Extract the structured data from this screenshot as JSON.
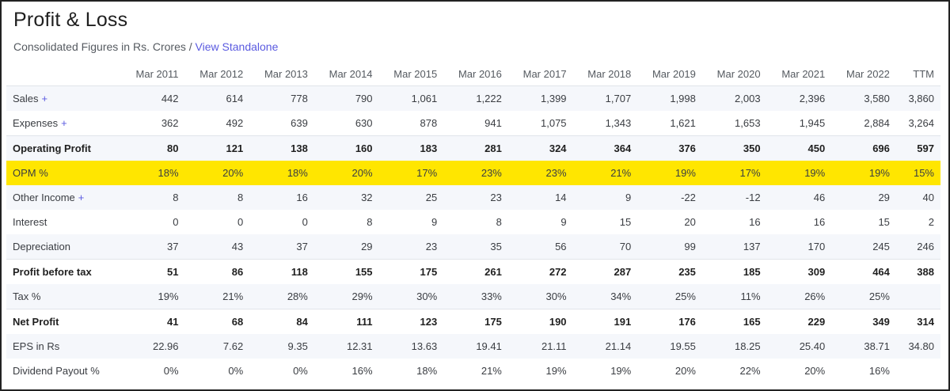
{
  "header": {
    "title": "Profit & Loss",
    "subtitle": "Consolidated Figures in Rs. Crores",
    "separator": " / ",
    "link": "View Standalone"
  },
  "table": {
    "columns": [
      "Mar 2011",
      "Mar 2012",
      "Mar 2013",
      "Mar 2014",
      "Mar 2015",
      "Mar 2016",
      "Mar 2017",
      "Mar 2018",
      "Mar 2019",
      "Mar 2020",
      "Mar 2021",
      "Mar 2022",
      "TTM"
    ],
    "rows": [
      {
        "label": "Sales",
        "expandable": true,
        "style": "stripe",
        "values": [
          "442",
          "614",
          "778",
          "790",
          "1,061",
          "1,222",
          "1,399",
          "1,707",
          "1,998",
          "2,003",
          "2,396",
          "3,580",
          "3,860"
        ]
      },
      {
        "label": "Expenses",
        "expandable": true,
        "style": "",
        "values": [
          "362",
          "492",
          "639",
          "630",
          "878",
          "941",
          "1,075",
          "1,343",
          "1,621",
          "1,653",
          "1,945",
          "2,884",
          "3,264"
        ]
      },
      {
        "label": "Operating Profit",
        "expandable": false,
        "style": "bold stripe",
        "values": [
          "80",
          "121",
          "138",
          "160",
          "183",
          "281",
          "324",
          "364",
          "376",
          "350",
          "450",
          "696",
          "597"
        ]
      },
      {
        "label": "OPM %",
        "expandable": false,
        "style": "hl",
        "values": [
          "18%",
          "20%",
          "18%",
          "20%",
          "17%",
          "23%",
          "23%",
          "21%",
          "19%",
          "17%",
          "19%",
          "19%",
          "15%"
        ]
      },
      {
        "label": "Other Income",
        "expandable": true,
        "style": "stripe",
        "values": [
          "8",
          "8",
          "16",
          "32",
          "25",
          "23",
          "14",
          "9",
          "-22",
          "-12",
          "46",
          "29",
          "40"
        ]
      },
      {
        "label": "Interest",
        "expandable": false,
        "style": "",
        "values": [
          "0",
          "0",
          "0",
          "8",
          "9",
          "8",
          "9",
          "15",
          "20",
          "16",
          "16",
          "15",
          "2"
        ]
      },
      {
        "label": "Depreciation",
        "expandable": false,
        "style": "stripe",
        "values": [
          "37",
          "43",
          "37",
          "29",
          "23",
          "35",
          "56",
          "70",
          "99",
          "137",
          "170",
          "245",
          "246"
        ]
      },
      {
        "label": "Profit before tax",
        "expandable": false,
        "style": "bold",
        "values": [
          "51",
          "86",
          "118",
          "155",
          "175",
          "261",
          "272",
          "287",
          "235",
          "185",
          "309",
          "464",
          "388"
        ]
      },
      {
        "label": "Tax %",
        "expandable": false,
        "style": "stripe",
        "values": [
          "19%",
          "21%",
          "28%",
          "29%",
          "30%",
          "33%",
          "30%",
          "34%",
          "25%",
          "11%",
          "26%",
          "25%",
          ""
        ]
      },
      {
        "label": "Net Profit",
        "expandable": false,
        "style": "bold",
        "values": [
          "41",
          "68",
          "84",
          "111",
          "123",
          "175",
          "190",
          "191",
          "176",
          "165",
          "229",
          "349",
          "314"
        ]
      },
      {
        "label": "EPS in Rs",
        "expandable": false,
        "style": "stripe",
        "values": [
          "22.96",
          "7.62",
          "9.35",
          "12.31",
          "13.63",
          "19.41",
          "21.11",
          "21.14",
          "19.55",
          "18.25",
          "25.40",
          "38.71",
          "34.80"
        ]
      },
      {
        "label": "Dividend Payout %",
        "expandable": false,
        "style": "",
        "values": [
          "0%",
          "0%",
          "0%",
          "16%",
          "18%",
          "21%",
          "19%",
          "19%",
          "20%",
          "22%",
          "20%",
          "16%",
          ""
        ]
      }
    ],
    "expand_symbol": "+"
  }
}
